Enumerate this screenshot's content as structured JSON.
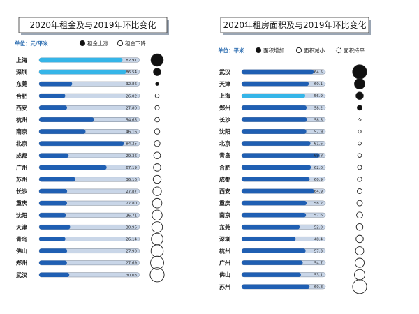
{
  "chart_data": [
    {
      "type": "bar",
      "title": "2020年租金及与2019年环比变化",
      "unit_label": "单位：元/平米",
      "legend": [
        {
          "label": "租金上涨",
          "marker": "filled"
        },
        {
          "label": "租金下降",
          "marker": "hollow"
        }
      ],
      "categories": [
        "上海",
        "深圳",
        "东莞",
        "合肥",
        "西安",
        "杭州",
        "南京",
        "北京",
        "成都",
        "广州",
        "苏州",
        "长沙",
        "重庆",
        "沈阳",
        "天津",
        "青岛",
        "佛山",
        "郑州",
        "武汉"
      ],
      "values": [
        82.91,
        86.54,
        32.86,
        26.02,
        27.8,
        54.65,
        46.16,
        84.25,
        29.36,
        67.19,
        36.16,
        27.87,
        27.8,
        26.71,
        30.95,
        26.14,
        27.9,
        27.69,
        30.03
      ],
      "change_direction": [
        "up",
        "up",
        "up",
        "down",
        "down",
        "down",
        "down",
        "down",
        "down",
        "down",
        "down",
        "down",
        "down",
        "down",
        "down",
        "down",
        "down",
        "down",
        "down"
      ],
      "change_magnitude": [
        4.0,
        2.4,
        1.0,
        1.3,
        1.4,
        1.5,
        1.7,
        1.9,
        2.2,
        2.4,
        2.6,
        2.8,
        3.1,
        3.3,
        3.5,
        3.8,
        4.0,
        4.3,
        4.6
      ],
      "xlim": [
        0,
        100
      ]
    },
    {
      "type": "bar",
      "title": "2020年租房面积及与2019年环比变化",
      "unit_label": "单位：平米",
      "legend": [
        {
          "label": "面积增加",
          "marker": "filled"
        },
        {
          "label": "面积减小",
          "marker": "hollow"
        },
        {
          "label": "面积持平",
          "marker": "dashed"
        }
      ],
      "categories": [
        "武汉",
        "天津",
        "上海",
        "郑州",
        "长沙",
        "沈阳",
        "北京",
        "青岛",
        "合肥",
        "成都",
        "西安",
        "重庆",
        "南京",
        "东莞",
        "深圳",
        "杭州",
        "广州",
        "佛山",
        "苏州"
      ],
      "values": [
        64.5,
        60.1,
        56.9,
        58.2,
        58.5,
        57.9,
        61.6,
        69.8,
        62.0,
        60.9,
        64.9,
        58.2,
        57.6,
        52.0,
        48.4,
        57.3,
        54.7,
        53.1,
        60.8
      ],
      "change_direction": [
        "up",
        "up",
        "up",
        "up",
        "flat",
        "down",
        "down",
        "down",
        "down",
        "down",
        "down",
        "down",
        "down",
        "down",
        "down",
        "down",
        "down",
        "down",
        "down"
      ],
      "change_magnitude": [
        4.6,
        3.4,
        2.4,
        1.6,
        0.9,
        1.0,
        1.1,
        1.3,
        1.4,
        1.5,
        1.6,
        1.8,
        2.0,
        2.2,
        2.4,
        2.7,
        3.0,
        3.4,
        4.6
      ],
      "xlim": [
        0,
        75
      ]
    }
  ],
  "colors": {
    "bar_track": "#c9d6e8",
    "bar_track_edge": "#7a8594",
    "bar_highlight": "#35b5e8",
    "bar_normal": "#1f5fb3",
    "title_shadow": "#9aa5b3",
    "text": "#1a1a1a",
    "unit_blue": "#2b6cb0"
  }
}
